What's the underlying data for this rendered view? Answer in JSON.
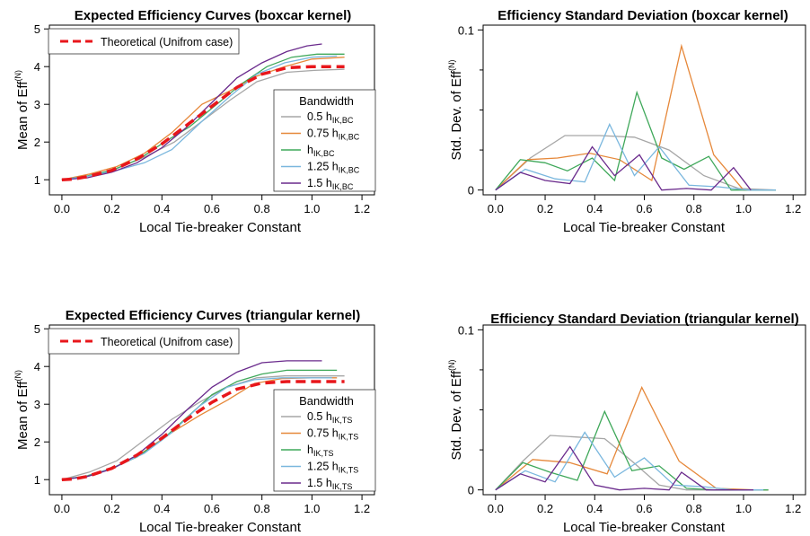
{
  "colors": {
    "gray": "#a6a6a6",
    "orange": "#e6883a",
    "green": "#3fa85a",
    "blue": "#7ab7de",
    "purple": "#6a2a8c",
    "theoretical": "#e8161b"
  },
  "labels": {
    "x_axis": "Local Tie-breaker Constant",
    "y_mean": "Mean of  Eff",
    "y_std": "Std. Dev. of  Eff",
    "y_sup": "(N)",
    "legend_theoretical": "Theoretical (Unifrom case)",
    "legend_title": "Bandwidth",
    "bandwidth_prefix": [
      "0.5 h",
      "0.75 h",
      "h",
      "1.25 h",
      "1.5 h"
    ]
  },
  "chart_data": [
    {
      "type": "line",
      "title": "Expected Efficiency Curves (boxcar kernel)",
      "xlabel": "Local Tie-breaker Constant",
      "ylabel": "Mean of  Eff(N)",
      "xlim": [
        -0.05,
        1.25
      ],
      "ylim": [
        0.6,
        5.1
      ],
      "xticks": [
        "0.0",
        "0.2",
        "0.4",
        "0.6",
        "0.8",
        "1.0",
        "1.2"
      ],
      "yticks": [
        "1",
        "2",
        "3",
        "4",
        "5"
      ],
      "legend_sub": "IK,BC",
      "theoretical": {
        "name": "Theoretical (Unifrom case)",
        "x": [
          0,
          0.05,
          0.1,
          0.2,
          0.3,
          0.4,
          0.5,
          0.6,
          0.7,
          0.8,
          0.9,
          1.0,
          1.13
        ],
        "y": [
          1.0,
          1.02,
          1.08,
          1.25,
          1.55,
          1.95,
          2.45,
          2.95,
          3.45,
          3.8,
          3.97,
          4.0,
          4.0
        ]
      },
      "series": [
        {
          "name": "0.5 h IK,BC",
          "color": "gray",
          "x": [
            0,
            0.11,
            0.22,
            0.33,
            0.45,
            0.56,
            0.67,
            0.78,
            0.9,
            1.01,
            1.13
          ],
          "y": [
            1.0,
            1.1,
            1.3,
            1.6,
            2.0,
            2.55,
            3.1,
            3.6,
            3.85,
            3.9,
            3.93
          ]
        },
        {
          "name": "0.75 h IK,BC",
          "color": "orange",
          "x": [
            0,
            0.11,
            0.22,
            0.33,
            0.44,
            0.56,
            0.67,
            0.78,
            0.89,
            1.0,
            1.13
          ],
          "y": [
            1.0,
            1.15,
            1.35,
            1.7,
            2.25,
            3.0,
            3.35,
            3.75,
            4.0,
            4.2,
            4.25
          ]
        },
        {
          "name": "h IK,BC",
          "color": "green",
          "x": [
            0,
            0.1,
            0.2,
            0.31,
            0.41,
            0.51,
            0.61,
            0.72,
            0.82,
            0.92,
            1.02,
            1.13
          ],
          "y": [
            1.0,
            1.1,
            1.25,
            1.55,
            2.0,
            2.4,
            2.95,
            3.55,
            4.0,
            4.25,
            4.33,
            4.33
          ]
        },
        {
          "name": "1.25 h IK,BC",
          "color": "blue",
          "x": [
            0,
            0.11,
            0.22,
            0.33,
            0.44,
            0.56,
            0.67,
            0.78,
            0.89,
            1.0,
            1.1
          ],
          "y": [
            1.0,
            1.1,
            1.25,
            1.45,
            1.8,
            2.55,
            3.2,
            3.8,
            4.1,
            4.25,
            4.28
          ]
        },
        {
          "name": "1.5 h IK,BC",
          "color": "purple",
          "x": [
            0,
            0.1,
            0.2,
            0.3,
            0.4,
            0.5,
            0.6,
            0.7,
            0.8,
            0.9,
            0.98,
            1.04
          ],
          "y": [
            1.0,
            1.05,
            1.2,
            1.45,
            1.85,
            2.4,
            3.05,
            3.7,
            4.1,
            4.4,
            4.55,
            4.6
          ]
        }
      ]
    },
    {
      "type": "line",
      "title": "Efficiency Standard Deviation (boxcar kernel)",
      "xlabel": "Local Tie-breaker Constant",
      "ylabel": "Std. Dev. of  Eff(N)",
      "xlim": [
        -0.05,
        1.25
      ],
      "ylim": [
        -0.003,
        0.103
      ],
      "xticks": [
        "0.0",
        "0.2",
        "0.4",
        "0.6",
        "0.8",
        "1.0",
        "1.2"
      ],
      "ytick_values": [
        0,
        0.1
      ],
      "ytick_labels": [
        "0",
        "0.1"
      ],
      "series": [
        {
          "name": "0.5 h IK,BC",
          "color": "gray",
          "x": [
            0,
            0.14,
            0.28,
            0.42,
            0.56,
            0.7,
            0.84,
            0.98,
            1.13
          ],
          "y": [
            0.0,
            0.02,
            0.034,
            0.034,
            0.033,
            0.025,
            0.009,
            0.001,
            0.0
          ]
        },
        {
          "name": "0.75 h IK,BC",
          "color": "orange",
          "x": [
            0,
            0.13,
            0.25,
            0.38,
            0.5,
            0.63,
            0.75,
            0.88,
            1.0,
            1.13
          ],
          "y": [
            0.0,
            0.019,
            0.02,
            0.023,
            0.019,
            0.006,
            0.09,
            0.022,
            0.0,
            0.0
          ]
        },
        {
          "name": "h IK,BC",
          "color": "green",
          "x": [
            0,
            0.1,
            0.2,
            0.29,
            0.39,
            0.48,
            0.57,
            0.67,
            0.76,
            0.86,
            0.95,
            1.05,
            1.13
          ],
          "y": [
            0.0,
            0.019,
            0.017,
            0.012,
            0.02,
            0.006,
            0.061,
            0.02,
            0.013,
            0.021,
            0.0,
            0.0,
            0.0
          ]
        },
        {
          "name": "1.25 h IK,BC",
          "color": "blue",
          "x": [
            0,
            0.12,
            0.24,
            0.36,
            0.46,
            0.56,
            0.66,
            0.78,
            0.9,
            1.02,
            1.13
          ],
          "y": [
            0.0,
            0.013,
            0.007,
            0.005,
            0.041,
            0.009,
            0.027,
            0.003,
            0.002,
            0.0,
            0.0
          ]
        },
        {
          "name": "1.5 h IK,BC",
          "color": "purple",
          "x": [
            0,
            0.1,
            0.2,
            0.3,
            0.39,
            0.48,
            0.58,
            0.67,
            0.77,
            0.87,
            0.96,
            1.03
          ],
          "y": [
            0.0,
            0.011,
            0.006,
            0.004,
            0.027,
            0.009,
            0.022,
            0.0,
            0.001,
            0.0,
            0.014,
            0.0
          ]
        }
      ]
    },
    {
      "type": "line",
      "title": "Expected Efficiency Curves (triangular kernel)",
      "xlabel": "Local Tie-breaker Constant",
      "ylabel": "Mean of  Eff(N)",
      "xlim": [
        -0.05,
        1.25
      ],
      "ylim": [
        0.6,
        5.1
      ],
      "xticks": [
        "0.0",
        "0.2",
        "0.4",
        "0.6",
        "0.8",
        "1.0",
        "1.2"
      ],
      "yticks": [
        "1",
        "2",
        "3",
        "4",
        "5"
      ],
      "legend_sub": "IK,TS",
      "theoretical": {
        "name": "Theoretical (Unifrom case)",
        "x": [
          0,
          0.05,
          0.1,
          0.2,
          0.3,
          0.4,
          0.5,
          0.6,
          0.7,
          0.8,
          0.9,
          1.0,
          1.13
        ],
        "y": [
          1.0,
          1.02,
          1.08,
          1.3,
          1.65,
          2.1,
          2.6,
          3.05,
          3.4,
          3.56,
          3.6,
          3.6,
          3.6
        ]
      },
      "series": [
        {
          "name": "0.5 h IK,TS",
          "color": "gray",
          "x": [
            0,
            0.11,
            0.22,
            0.33,
            0.44,
            0.55,
            0.66,
            0.78,
            0.89,
            1.0,
            1.13
          ],
          "y": [
            1.0,
            1.2,
            1.5,
            2.05,
            2.6,
            3.05,
            3.45,
            3.7,
            3.75,
            3.75,
            3.75
          ]
        },
        {
          "name": "0.75 h IK,TS",
          "color": "orange",
          "x": [
            0,
            0.11,
            0.22,
            0.33,
            0.44,
            0.55,
            0.66,
            0.77,
            0.88,
            1.0,
            1.1
          ],
          "y": [
            1.0,
            1.1,
            1.35,
            1.75,
            2.25,
            2.7,
            3.1,
            3.55,
            3.68,
            3.7,
            3.7
          ]
        },
        {
          "name": "h IK,TS",
          "color": "green",
          "x": [
            0,
            0.1,
            0.2,
            0.3,
            0.4,
            0.5,
            0.6,
            0.7,
            0.8,
            0.9,
            1.0,
            1.1
          ],
          "y": [
            1.0,
            1.1,
            1.3,
            1.6,
            2.05,
            2.65,
            3.25,
            3.6,
            3.8,
            3.9,
            3.9,
            3.9
          ]
        },
        {
          "name": "1.25 h IK,TS",
          "color": "blue",
          "x": [
            0,
            0.11,
            0.22,
            0.33,
            0.44,
            0.55,
            0.66,
            0.77,
            0.88,
            0.99,
            1.08
          ],
          "y": [
            1.0,
            1.1,
            1.35,
            1.7,
            2.25,
            2.95,
            3.45,
            3.65,
            3.7,
            3.7,
            3.7
          ]
        },
        {
          "name": "1.5 h IK,TS",
          "color": "purple",
          "x": [
            0,
            0.1,
            0.2,
            0.3,
            0.4,
            0.5,
            0.6,
            0.7,
            0.8,
            0.9,
            1.04
          ],
          "y": [
            1.0,
            1.08,
            1.28,
            1.65,
            2.2,
            2.85,
            3.45,
            3.85,
            4.1,
            4.15,
            4.15
          ]
        }
      ]
    },
    {
      "type": "line",
      "title": "Efficiency Standard Deviation (triangular kernel)",
      "xlabel": "Local Tie-breaker Constant",
      "ylabel": "Std. Dev. of  Eff(N)",
      "xlim": [
        -0.05,
        1.25
      ],
      "ylim": [
        -0.003,
        0.103
      ],
      "xticks": [
        "0.0",
        "0.2",
        "0.4",
        "0.6",
        "0.8",
        "1.0",
        "1.2"
      ],
      "ytick_values": [
        0,
        0.1
      ],
      "ytick_labels": [
        "0",
        "0.1"
      ],
      "series": [
        {
          "name": "0.5 h IK,TS",
          "color": "gray",
          "x": [
            0,
            0.11,
            0.22,
            0.33,
            0.44,
            0.55,
            0.66,
            0.77,
            0.88,
            0.99,
            1.1
          ],
          "y": [
            0.0,
            0.018,
            0.034,
            0.033,
            0.032,
            0.018,
            0.003,
            0.0,
            0.0,
            0.0,
            0.0
          ]
        },
        {
          "name": "0.75 h IK,TS",
          "color": "orange",
          "x": [
            0,
            0.15,
            0.3,
            0.45,
            0.59,
            0.74,
            0.89,
            1.04,
            1.1
          ],
          "y": [
            0.0,
            0.019,
            0.017,
            0.01,
            0.064,
            0.018,
            0.001,
            0.0,
            0.0
          ]
        },
        {
          "name": "h IK,TS",
          "color": "green",
          "x": [
            0,
            0.11,
            0.22,
            0.33,
            0.44,
            0.55,
            0.66,
            0.77,
            0.88,
            0.99,
            1.1
          ],
          "y": [
            0.0,
            0.017,
            0.011,
            0.006,
            0.049,
            0.012,
            0.015,
            0.001,
            0.0,
            0.0,
            0.0
          ]
        },
        {
          "name": "1.25 h IK,TS",
          "color": "blue",
          "x": [
            0,
            0.12,
            0.24,
            0.36,
            0.48,
            0.6,
            0.72,
            0.84,
            0.96,
            1.08
          ],
          "y": [
            0.0,
            0.012,
            0.005,
            0.036,
            0.008,
            0.02,
            0.003,
            0.002,
            0.0,
            0.0
          ]
        },
        {
          "name": "1.5 h IK,TS",
          "color": "purple",
          "x": [
            0,
            0.1,
            0.2,
            0.3,
            0.4,
            0.5,
            0.6,
            0.7,
            0.75,
            0.85,
            0.95,
            1.04
          ],
          "y": [
            0.0,
            0.01,
            0.005,
            0.027,
            0.003,
            0.0,
            0.001,
            0.0,
            0.011,
            0.0,
            0.0,
            0.0
          ]
        }
      ]
    }
  ]
}
